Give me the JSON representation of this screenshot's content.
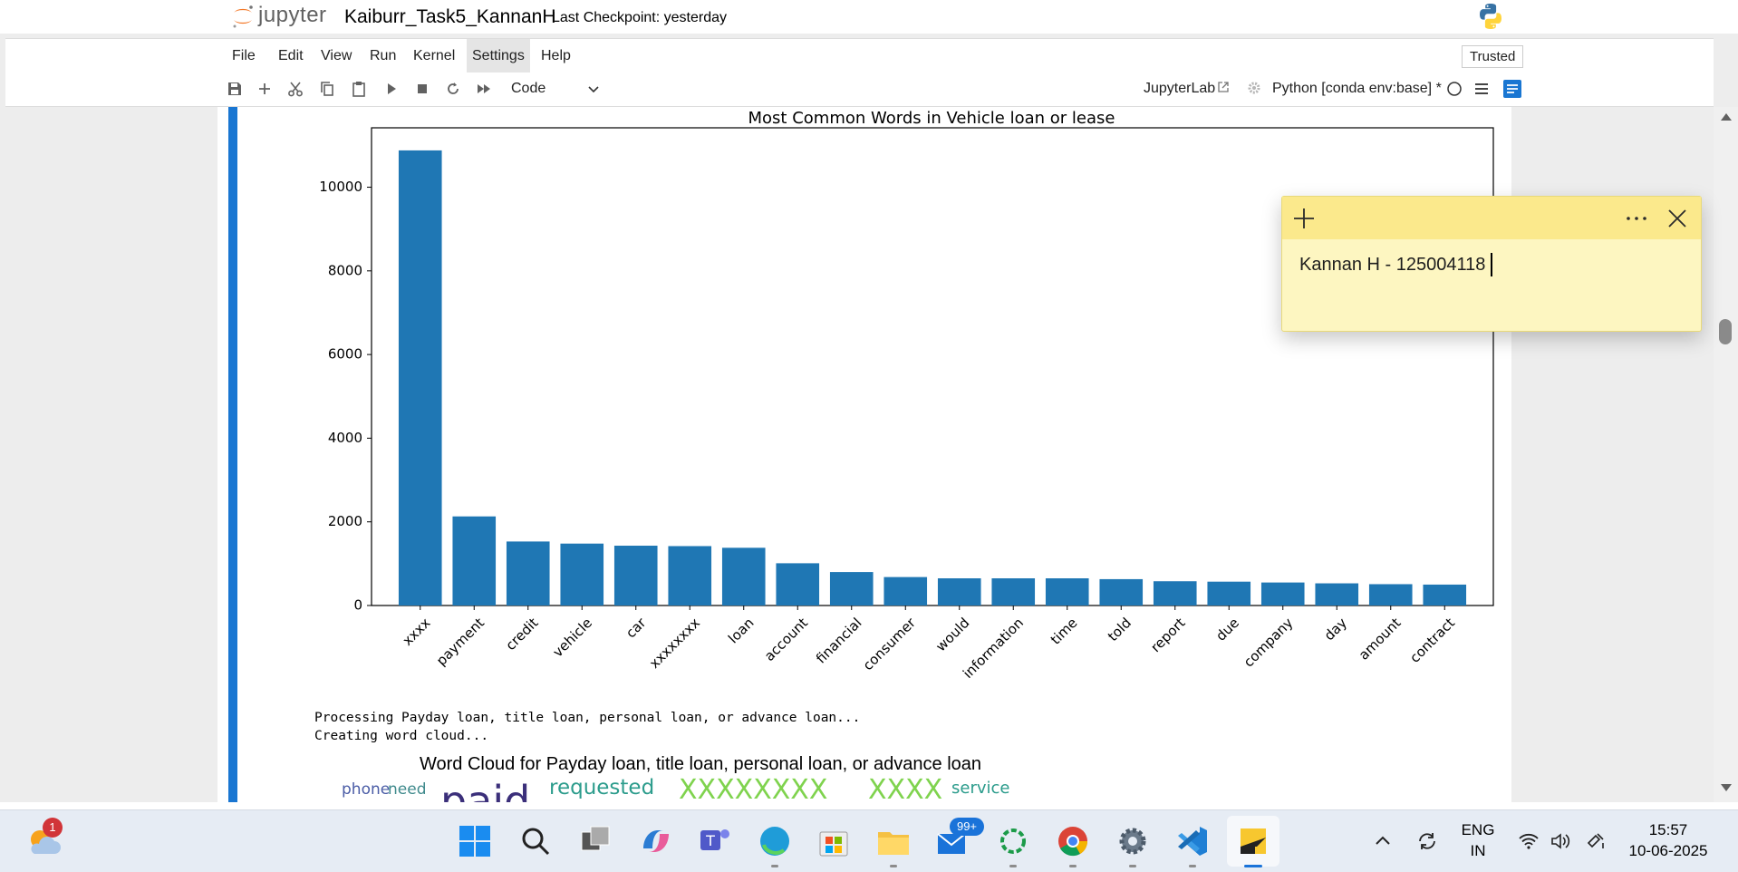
{
  "topbar": {
    "logo_text": "jupyter",
    "notebook_title": "Kaiburr_Task5_KannanH",
    "checkpoint": "Last Checkpoint: yesterday"
  },
  "menu": {
    "items": [
      "File",
      "Edit",
      "View",
      "Run",
      "Kernel",
      "Settings",
      "Help"
    ],
    "trusted": "Trusted"
  },
  "toolbar": {
    "cell_type": "Code",
    "jupyterlab_link": "JupyterLab",
    "kernel_name": "Python [conda env:base] *"
  },
  "chart_data": {
    "type": "bar",
    "title": "Most Common Words in Vehicle loan or lease",
    "categories": [
      "xxxx",
      "payment",
      "credit",
      "vehicle",
      "car",
      "xxxxxxxx",
      "loan",
      "account",
      "financial",
      "consumer",
      "would",
      "information",
      "time",
      "told",
      "report",
      "due",
      "company",
      "day",
      "amount",
      "contract"
    ],
    "values": [
      10880,
      2130,
      1530,
      1480,
      1430,
      1420,
      1380,
      1010,
      800,
      680,
      650,
      650,
      650,
      630,
      580,
      570,
      550,
      530,
      510,
      500
    ],
    "yticks": [
      0,
      2000,
      4000,
      6000,
      8000,
      10000
    ],
    "ylim": [
      0,
      11420
    ],
    "color": "#1f77b4",
    "grid": false
  },
  "output": {
    "line1": "Processing Payday loan, title loan, personal loan, or advance loan...",
    "line2": "Creating word cloud...",
    "wordcloud_title": "Word Cloud for Payday loan, title loan, personal loan, or advance loan",
    "wordcloud_words": [
      {
        "text": "phone",
        "color": "#4a5ca6"
      },
      {
        "text": "need",
        "color": "#3f8a8c"
      },
      {
        "text": "paid",
        "color": "#3b2f7a"
      },
      {
        "text": "requested",
        "color": "#2c9c8c"
      },
      {
        "text": "XXXXXXXX",
        "color": "#7fd34e"
      },
      {
        "text": "XXXX",
        "color": "#7fd34e"
      },
      {
        "text": "service",
        "color": "#2a9b8b"
      }
    ]
  },
  "sticky_note": {
    "text": "Kannan H - 125004118"
  },
  "taskbar": {
    "notification_badge": "1",
    "mail_badge": "99+",
    "lang_line1": "ENG",
    "lang_line2": "IN",
    "time": "15:57",
    "date": "10-06-2025"
  }
}
